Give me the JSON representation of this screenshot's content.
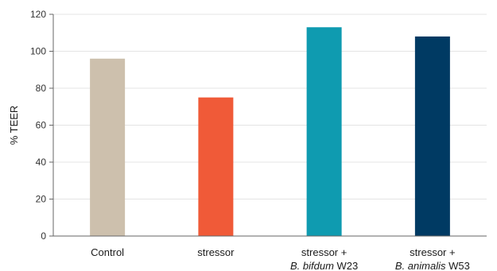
{
  "chart_data": {
    "type": "bar",
    "title": "",
    "xlabel": "",
    "ylabel": "% TEER",
    "ylim": [
      0,
      120
    ],
    "yticks": [
      0,
      20,
      40,
      60,
      80,
      100,
      120
    ],
    "grid": true,
    "categories": [
      {
        "lines": [
          [
            {
              "text": "Control",
              "italic": false
            }
          ]
        ]
      },
      {
        "lines": [
          [
            {
              "text": "stressor",
              "italic": false
            }
          ]
        ]
      },
      {
        "lines": [
          [
            {
              "text": "stressor +",
              "italic": false
            }
          ],
          [
            {
              "text": "B. bifdum",
              "italic": true
            },
            {
              "text": " W23",
              "italic": false
            }
          ]
        ]
      },
      {
        "lines": [
          [
            {
              "text": "stressor +",
              "italic": false
            }
          ],
          [
            {
              "text": "B. animalis",
              "italic": true
            },
            {
              "text": " W53",
              "italic": false
            }
          ]
        ]
      }
    ],
    "values": [
      96,
      75,
      113,
      108
    ],
    "colors": [
      "#cdc0ad",
      "#f05a38",
      "#0f9bb0",
      "#003a63"
    ]
  }
}
